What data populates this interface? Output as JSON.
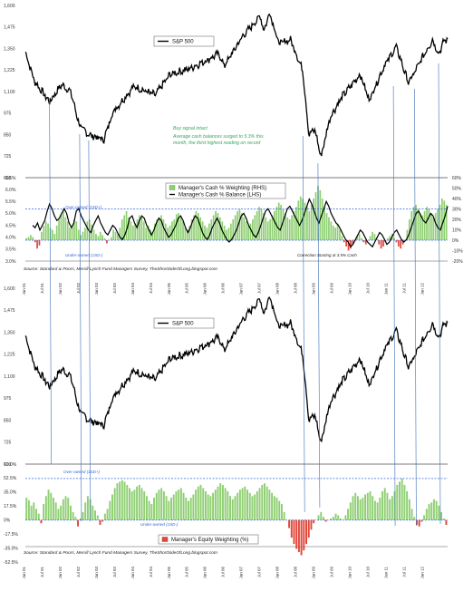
{
  "chart_data": [
    {
      "type": "line",
      "panel": "sp500-top",
      "legend": "S&P 500",
      "yticks": [
        600,
        725,
        850,
        975,
        1100,
        1225,
        1350,
        1475,
        1600
      ],
      "ylim": [
        600,
        1600
      ],
      "x": [
        "2001-01",
        "2001-04",
        "2001-09",
        "2002-01",
        "2002-04",
        "2002-07",
        "2002-10",
        "2003-03",
        "2003-06",
        "2004-01",
        "2004-08",
        "2005-01",
        "2005-07",
        "2006-01",
        "2006-05",
        "2006-07",
        "2007-01",
        "2007-07",
        "2007-08",
        "2007-10",
        "2008-01",
        "2008-05",
        "2008-09",
        "2008-11",
        "2009-01",
        "2009-03",
        "2009-06",
        "2009-10",
        "2010-04",
        "2010-07",
        "2010-12",
        "2011-04",
        "2011-08",
        "2011-10",
        "2012-01",
        "2012-04",
        "2012-06",
        "2012-08"
      ],
      "y": [
        1330,
        1160,
        1040,
        1140,
        1100,
        900,
        850,
        820,
        980,
        1130,
        1080,
        1200,
        1230,
        1280,
        1320,
        1250,
        1420,
        1540,
        1450,
        1560,
        1380,
        1400,
        1220,
        850,
        880,
        720,
        950,
        1070,
        1200,
        1050,
        1250,
        1360,
        1150,
        1210,
        1310,
        1400,
        1320,
        1400
      ]
    },
    {
      "type": "bar",
      "panel": "cash",
      "title": "",
      "legend": [
        "Manager's Cash % Weighting (RHS)",
        "Manager's Cash % Balance (LHS)"
      ],
      "left_yticks": [
        "3.0%",
        "3.5%",
        "4.0%",
        "4.5%",
        "5.0%",
        "5.5%",
        "6.0%",
        "6.5%"
      ],
      "right_yticks": [
        "-20%",
        "-10%",
        "0%",
        "10%",
        "20%",
        "30%",
        "40%",
        "50%",
        "60%"
      ],
      "left_ylim": [
        3.0,
        6.5
      ],
      "right_ylim": [
        -20,
        60
      ],
      "overowned_label": "Over-owned (1SD+)",
      "overowned_level": 30,
      "underowned_label": "Under-owned (1SD-)",
      "underowned_level": 0,
      "annotation_title": "Buy signal intact",
      "annotation_line1": "Average cash balances surged to 5.3% this",
      "annotation_line2": "month, the third highest reading on record",
      "correction_note": "Correction Starting at 3.5% Cash",
      "source": "Source: Standard & Poors, Merrill Lynch Fund Managers Survey, TheShortSideOfLong.blogspot.com",
      "weighting_pct": [
        2,
        3,
        5,
        3,
        -2,
        -8,
        -5,
        8,
        14,
        18,
        16,
        12,
        10,
        6,
        14,
        20,
        25,
        28,
        22,
        18,
        12,
        14,
        20,
        18,
        10,
        5,
        8,
        12,
        18,
        20,
        15,
        10,
        6,
        4,
        8,
        5,
        2,
        -3,
        0,
        3,
        10,
        8,
        6,
        12,
        20,
        24,
        28,
        22,
        18,
        14,
        16,
        20,
        24,
        22,
        18,
        12,
        14,
        10,
        8,
        16,
        20,
        22,
        24,
        20,
        16,
        12,
        14,
        18,
        20,
        25,
        26,
        22,
        18,
        12,
        10,
        14,
        20,
        24,
        28,
        26,
        22,
        18,
        14,
        12,
        16,
        20,
        24,
        28,
        26,
        22,
        18,
        14,
        10,
        12,
        16,
        20,
        24,
        28,
        30,
        26,
        22,
        18,
        14,
        16,
        20,
        24,
        28,
        32,
        30,
        26,
        22,
        18,
        20,
        24,
        28,
        32,
        36,
        34,
        30,
        26,
        22,
        20,
        24,
        28,
        32,
        38,
        42,
        40,
        36,
        32,
        28,
        34,
        40,
        46,
        52,
        48,
        40,
        32,
        26,
        22,
        18,
        14,
        12,
        16,
        10,
        4,
        -2,
        -6,
        -10,
        -8,
        -4,
        0,
        4,
        6,
        2,
        -2,
        -4,
        0,
        4,
        8,
        6,
        2,
        -4,
        -8,
        -6,
        -2,
        2,
        4,
        6,
        2,
        -2,
        -6,
        -8,
        -4,
        0,
        10,
        20,
        28,
        32,
        34,
        30,
        26,
        24,
        28,
        32,
        30,
        26,
        22,
        26,
        30,
        34,
        40,
        38,
        34
      ],
      "balance_pct": [
        4.5,
        4.4,
        4.6,
        4.3,
        4.5,
        4.7,
        5.1,
        5.4,
        5.2,
        4.9,
        4.7,
        4.8,
        5.0,
        5.2,
        5.0,
        4.6,
        4.4,
        4.6,
        5.1,
        5.2,
        4.9,
        4.7,
        4.5,
        4.3,
        4.2,
        4.5,
        4.7,
        4.9,
        4.6,
        4.4,
        4.2,
        4.1,
        4.3,
        4.5,
        4.4,
        4.2,
        4.0,
        3.9,
        4.1,
        4.4,
        4.8,
        4.9,
        4.6,
        4.4,
        4.7,
        4.9,
        4.8,
        4.5,
        4.3,
        4.1,
        4.3,
        4.6,
        4.8,
        4.7,
        4.4,
        4.2,
        4.0,
        4.1,
        4.3,
        4.5,
        4.8,
        4.9,
        4.7,
        4.4,
        4.2,
        4.4,
        4.7,
        4.9,
        4.8,
        4.5,
        4.2,
        4.0,
        3.9,
        4.1,
        4.4,
        4.6,
        4.8,
        4.6,
        4.3,
        4.1,
        3.9,
        3.8,
        3.9,
        4.1,
        4.3,
        4.6,
        4.9,
        5.0,
        4.8,
        4.5,
        4.3,
        4.1,
        4.0,
        4.2,
        4.5,
        4.8,
        5.1,
        5.2,
        5.0,
        4.8,
        4.6,
        4.4,
        4.3,
        4.6,
        4.9,
        5.2,
        5.3,
        5.1,
        4.9,
        4.7,
        4.5,
        4.7,
        5.0,
        5.3,
        5.6,
        5.4,
        5.1,
        4.8,
        4.6,
        4.9,
        5.2,
        5.5,
        5.3,
        5.0,
        4.8,
        4.6,
        4.5,
        4.3,
        4.1,
        3.9,
        3.8,
        3.6,
        3.7,
        3.9,
        4.1,
        4.3,
        4.2,
        4.0,
        3.8,
        3.7,
        3.6,
        3.8,
        4.0,
        4.2,
        4.1,
        3.9,
        3.7,
        3.8,
        4.0,
        4.2,
        4.3,
        4.1,
        3.9,
        3.8,
        3.9,
        4.1,
        4.4,
        4.7,
        5.0,
        5.1,
        4.9,
        4.7,
        4.6,
        4.8,
        5.0,
        4.9,
        4.6,
        4.4,
        4.3,
        4.6,
        4.9,
        5.3
      ]
    },
    {
      "type": "line",
      "panel": "sp500-bottom",
      "legend": "S&P 500",
      "yticks": [
        600,
        725,
        850,
        975,
        1100,
        1225,
        1350,
        1475,
        1600
      ],
      "ylim": [
        600,
        1600
      ]
    },
    {
      "type": "bar",
      "panel": "equity",
      "legend": "Manager's Equity Weighting (%)",
      "yticks": [
        "-52.5%",
        "-35.0%",
        "-17.5%",
        "0%",
        "17.5%",
        "35.0%",
        "52.5%",
        "70.0%"
      ],
      "ylim": [
        -52.5,
        70
      ],
      "overowned_label": "Over-owned (1SD+)",
      "overowned_level": 52,
      "underowned_label": "Under-owned (1SD-)",
      "underowned_level": 0,
      "source": "Source: Standard & Poors, Merrill Lynch Fund Managers Survey, TheShortSideOfLong.blogspot.com",
      "values": [
        28,
        25,
        18,
        22,
        14,
        8,
        -4,
        20,
        30,
        38,
        34,
        28,
        22,
        14,
        18,
        26,
        30,
        28,
        18,
        10,
        4,
        -8,
        2,
        10,
        22,
        30,
        26,
        18,
        12,
        6,
        -6,
        -2,
        8,
        14,
        24,
        32,
        40,
        46,
        48,
        50,
        48,
        44,
        40,
        36,
        38,
        42,
        44,
        40,
        36,
        30,
        24,
        20,
        28,
        34,
        38,
        40,
        36,
        30,
        24,
        28,
        32,
        36,
        38,
        40,
        34,
        28,
        24,
        28,
        32,
        38,
        42,
        44,
        40,
        36,
        32,
        30,
        34,
        38,
        42,
        46,
        44,
        40,
        36,
        30,
        26,
        30,
        34,
        38,
        40,
        42,
        38,
        34,
        30,
        32,
        36,
        40,
        44,
        46,
        42,
        38,
        34,
        30,
        28,
        24,
        20,
        10,
        0,
        -10,
        -22,
        -30,
        -36,
        -40,
        -44,
        -38,
        -30,
        -22,
        -12,
        -4,
        0,
        6,
        10,
        4,
        -2,
        0,
        2,
        4,
        8,
        6,
        2,
        0,
        6,
        14,
        22,
        30,
        34,
        30,
        26,
        28,
        32,
        34,
        36,
        30,
        24,
        22,
        28,
        36,
        40,
        34,
        26,
        30,
        36,
        44,
        48,
        52,
        44,
        36,
        26,
        14,
        4,
        -6,
        -8,
        -2,
        6,
        14,
        20,
        22,
        26,
        24,
        18,
        10,
        2,
        -6
      ]
    }
  ],
  "x_ticks": [
    "Jan 01",
    "Jul 01",
    "Jan 02",
    "Jul 02",
    "Jan 03",
    "Jul 03",
    "Jan 04",
    "Jul 04",
    "Jan 05",
    "Jul 05",
    "Jan 06",
    "Jul 06",
    "Jan 07",
    "Jul 07",
    "Jan 08",
    "Jul 08",
    "Jan 09",
    "Jul 09",
    "Jan 10",
    "Jul 10",
    "Jan 11",
    "Jul 11",
    "Jan 12"
  ],
  "colors": {
    "sp500": "#000000",
    "cash_bars": "#8fcf73",
    "equity_pos": "#8fcf73",
    "equity_neg": "#e2473a",
    "overowned_line": "#3366dd",
    "signal_lines": "#3b6fb6"
  }
}
